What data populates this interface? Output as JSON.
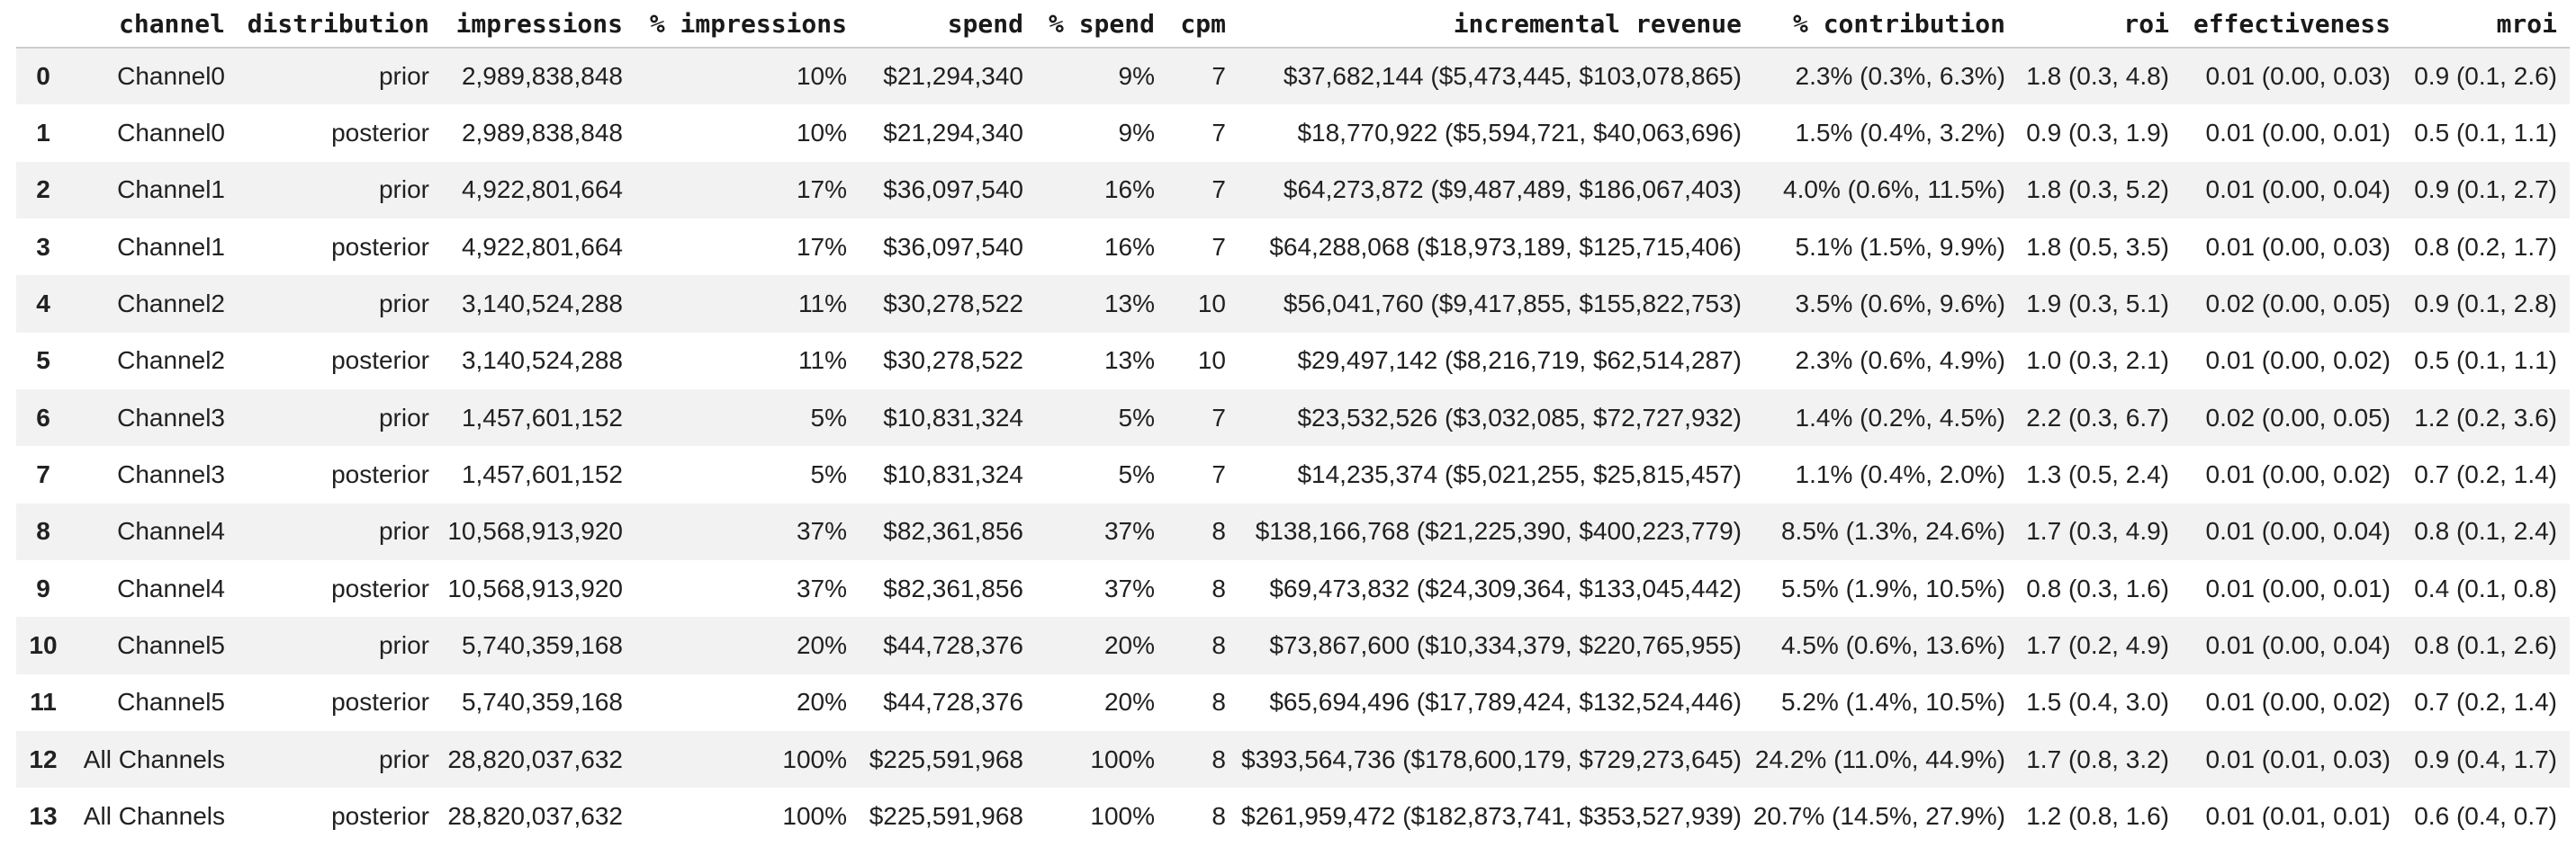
{
  "table": {
    "columns": [
      "",
      "channel",
      "distribution",
      "impressions",
      "% impressions",
      "spend",
      "% spend",
      "cpm",
      "incremental revenue",
      "% contribution",
      "roi",
      "effectiveness",
      "mroi"
    ],
    "rows": [
      [
        "0",
        "Channel0",
        "prior",
        "2,989,838,848",
        "10%",
        "$21,294,340",
        "9%",
        "7",
        "$37,682,144 ($5,473,445, $103,078,865)",
        "2.3% (0.3%, 6.3%)",
        "1.8 (0.3, 4.8)",
        "0.01 (0.00, 0.03)",
        "0.9 (0.1, 2.6)"
      ],
      [
        "1",
        "Channel0",
        "posterior",
        "2,989,838,848",
        "10%",
        "$21,294,340",
        "9%",
        "7",
        "$18,770,922 ($5,594,721, $40,063,696)",
        "1.5% (0.4%, 3.2%)",
        "0.9 (0.3, 1.9)",
        "0.01 (0.00, 0.01)",
        "0.5 (0.1, 1.1)"
      ],
      [
        "2",
        "Channel1",
        "prior",
        "4,922,801,664",
        "17%",
        "$36,097,540",
        "16%",
        "7",
        "$64,273,872 ($9,487,489, $186,067,403)",
        "4.0% (0.6%, 11.5%)",
        "1.8 (0.3, 5.2)",
        "0.01 (0.00, 0.04)",
        "0.9 (0.1, 2.7)"
      ],
      [
        "3",
        "Channel1",
        "posterior",
        "4,922,801,664",
        "17%",
        "$36,097,540",
        "16%",
        "7",
        "$64,288,068 ($18,973,189, $125,715,406)",
        "5.1% (1.5%, 9.9%)",
        "1.8 (0.5, 3.5)",
        "0.01 (0.00, 0.03)",
        "0.8 (0.2, 1.7)"
      ],
      [
        "4",
        "Channel2",
        "prior",
        "3,140,524,288",
        "11%",
        "$30,278,522",
        "13%",
        "10",
        "$56,041,760 ($9,417,855, $155,822,753)",
        "3.5% (0.6%, 9.6%)",
        "1.9 (0.3, 5.1)",
        "0.02 (0.00, 0.05)",
        "0.9 (0.1, 2.8)"
      ],
      [
        "5",
        "Channel2",
        "posterior",
        "3,140,524,288",
        "11%",
        "$30,278,522",
        "13%",
        "10",
        "$29,497,142 ($8,216,719, $62,514,287)",
        "2.3% (0.6%, 4.9%)",
        "1.0 (0.3, 2.1)",
        "0.01 (0.00, 0.02)",
        "0.5 (0.1, 1.1)"
      ],
      [
        "6",
        "Channel3",
        "prior",
        "1,457,601,152",
        "5%",
        "$10,831,324",
        "5%",
        "7",
        "$23,532,526 ($3,032,085, $72,727,932)",
        "1.4% (0.2%, 4.5%)",
        "2.2 (0.3, 6.7)",
        "0.02 (0.00, 0.05)",
        "1.2 (0.2, 3.6)"
      ],
      [
        "7",
        "Channel3",
        "posterior",
        "1,457,601,152",
        "5%",
        "$10,831,324",
        "5%",
        "7",
        "$14,235,374 ($5,021,255, $25,815,457)",
        "1.1% (0.4%, 2.0%)",
        "1.3 (0.5, 2.4)",
        "0.01 (0.00, 0.02)",
        "0.7 (0.2, 1.4)"
      ],
      [
        "8",
        "Channel4",
        "prior",
        "10,568,913,920",
        "37%",
        "$82,361,856",
        "37%",
        "8",
        "$138,166,768 ($21,225,390, $400,223,779)",
        "8.5% (1.3%, 24.6%)",
        "1.7 (0.3, 4.9)",
        "0.01 (0.00, 0.04)",
        "0.8 (0.1, 2.4)"
      ],
      [
        "9",
        "Channel4",
        "posterior",
        "10,568,913,920",
        "37%",
        "$82,361,856",
        "37%",
        "8",
        "$69,473,832 ($24,309,364, $133,045,442)",
        "5.5% (1.9%, 10.5%)",
        "0.8 (0.3, 1.6)",
        "0.01 (0.00, 0.01)",
        "0.4 (0.1, 0.8)"
      ],
      [
        "10",
        "Channel5",
        "prior",
        "5,740,359,168",
        "20%",
        "$44,728,376",
        "20%",
        "8",
        "$73,867,600 ($10,334,379, $220,765,955)",
        "4.5% (0.6%, 13.6%)",
        "1.7 (0.2, 4.9)",
        "0.01 (0.00, 0.04)",
        "0.8 (0.1, 2.6)"
      ],
      [
        "11",
        "Channel5",
        "posterior",
        "5,740,359,168",
        "20%",
        "$44,728,376",
        "20%",
        "8",
        "$65,694,496 ($17,789,424, $132,524,446)",
        "5.2% (1.4%, 10.5%)",
        "1.5 (0.4, 3.0)",
        "0.01 (0.00, 0.02)",
        "0.7 (0.2, 1.4)"
      ],
      [
        "12",
        "All Channels",
        "prior",
        "28,820,037,632",
        "100%",
        "$225,591,968",
        "100%",
        "8",
        "$393,564,736 ($178,600,179, $729,273,645)",
        "24.2% (11.0%, 44.9%)",
        "1.7 (0.8, 3.2)",
        "0.01 (0.01, 0.03)",
        "0.9 (0.4, 1.7)"
      ],
      [
        "13",
        "All Channels",
        "posterior",
        "28,820,037,632",
        "100%",
        "$225,591,968",
        "100%",
        "8",
        "$261,959,472 ($182,873,741, $353,527,939)",
        "20.7% (14.5%, 27.9%)",
        "1.2 (0.8, 1.6)",
        "0.01 (0.01, 0.01)",
        "0.6 (0.4, 0.7)"
      ]
    ]
  },
  "colors": {
    "stripe": "#f2f2f2",
    "header_border": "#cccccc",
    "body_text": "#212121",
    "header_text": "#1a1a1a",
    "background": "#ffffff"
  }
}
